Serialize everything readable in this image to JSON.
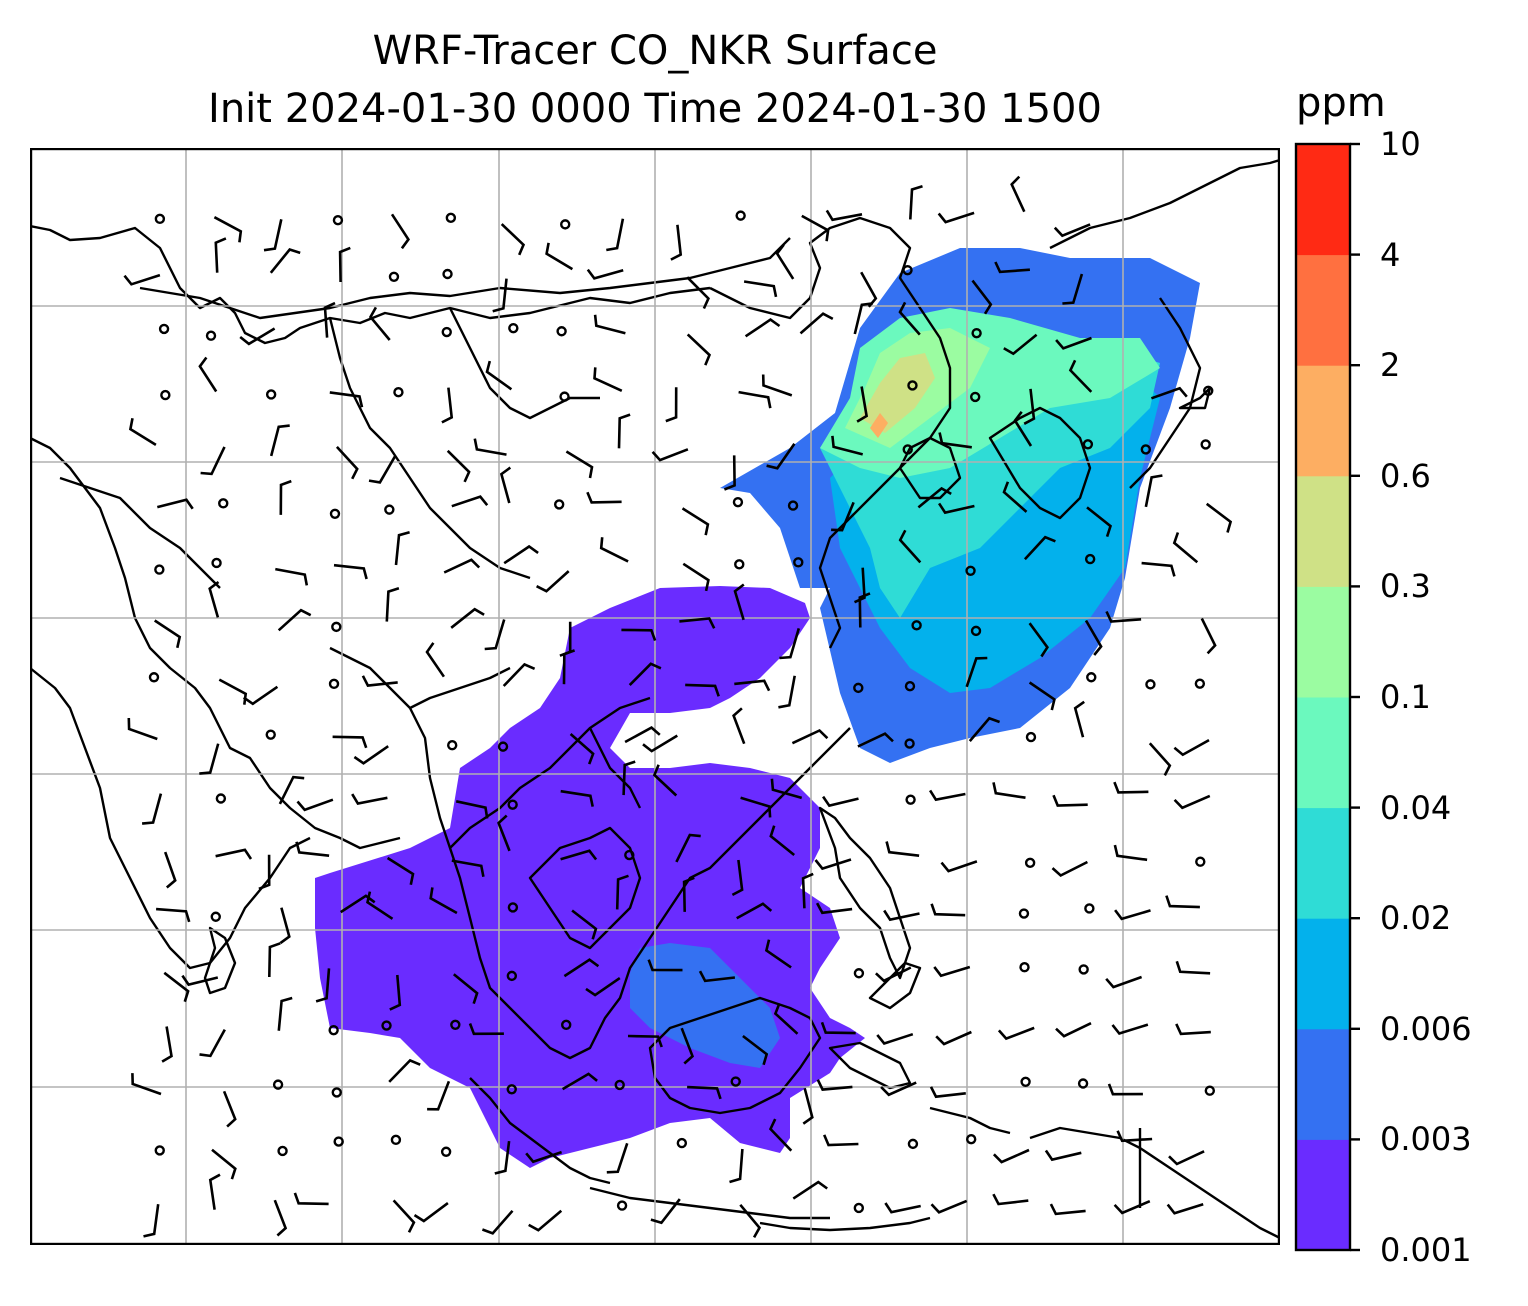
{
  "title": {
    "line1": "WRF-Tracer CO_NKR Surface",
    "line2": "Init 2024-01-30 0000 Time 2024-01-30 1500"
  },
  "colorbar": {
    "unit": "ppm",
    "levels": [
      "0.001",
      "0.003",
      "0.006",
      "0.02",
      "0.04",
      "0.1",
      "0.3",
      "0.6",
      "2",
      "4",
      "10"
    ],
    "colors": [
      "#6a2cff",
      "#3471f2",
      "#03b1ec",
      "#2fdcd6",
      "#6bf9be",
      "#9bfca1",
      "#cfe186",
      "#fdae62",
      "#ff7040",
      "#ff2a14"
    ]
  },
  "map": {
    "variable": "CO tracer surface concentration",
    "overlays": [
      "coastlines",
      "country-borders",
      "lat-lon-gridlines",
      "wind-barbs",
      "calm-wind-circles"
    ]
  }
}
